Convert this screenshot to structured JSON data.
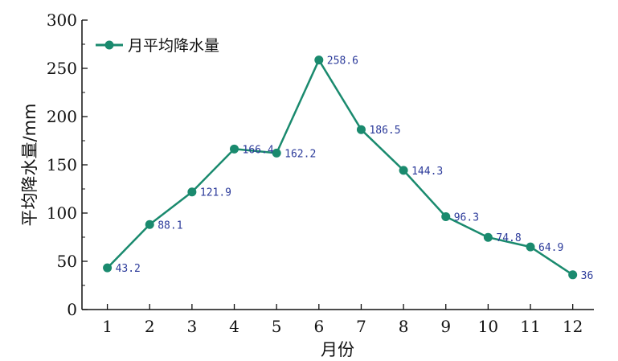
{
  "chart_data": {
    "type": "line",
    "title": "",
    "xlabel": "月份",
    "ylabel": "平均降水量/mm",
    "xlim": [
      0.4,
      12.5
    ],
    "ylim": [
      0,
      300
    ],
    "yticks": [
      0,
      50,
      100,
      150,
      200,
      250,
      300
    ],
    "categories": [
      "1",
      "2",
      "3",
      "4",
      "5",
      "6",
      "7",
      "8",
      "9",
      "10",
      "11",
      "12"
    ],
    "grid": false,
    "legend": "top-left",
    "series": [
      {
        "name": "月平均降水量",
        "color": "#1a8a6e",
        "values": [
          43.2,
          88.1,
          121.9,
          166.4,
          162.2,
          258.6,
          186.5,
          144.3,
          96.3,
          74.8,
          64.9,
          36
        ],
        "labels": [
          "43.2",
          "88.1",
          "121.9",
          "166.4",
          "162.2",
          "258.6",
          "186.5",
          "144.3",
          "96.3",
          "74.8",
          "64.9",
          "36"
        ]
      }
    ]
  }
}
